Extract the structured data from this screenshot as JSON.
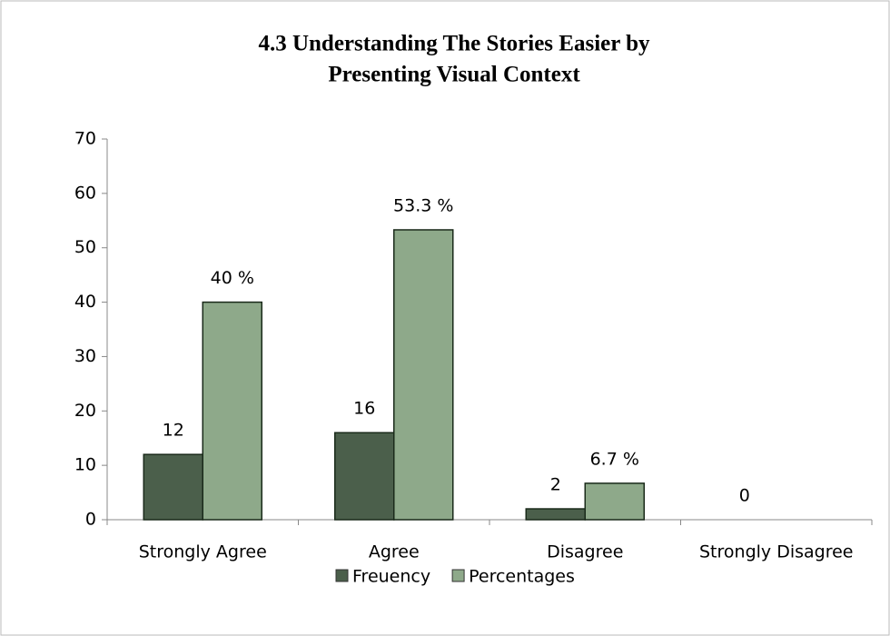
{
  "chart_data": {
    "type": "bar",
    "title": [
      "4.3 Understanding The Stories Easier by",
      "Presenting Visual Context"
    ],
    "categories": [
      "Strongly Agree",
      "Agree",
      "Disagree",
      "Strongly Disagree"
    ],
    "series": [
      {
        "name": "Freuency",
        "color": "#4b5f4b",
        "values": [
          12,
          16,
          2,
          0
        ]
      },
      {
        "name": "Percentages",
        "color": "#8ea98a",
        "values": [
          40,
          53.3,
          6.7,
          0
        ],
        "value_labels": [
          "40 %",
          "53.3 %",
          "6.7 %",
          null
        ]
      }
    ],
    "ylim": [
      0,
      70
    ],
    "yticks": [
      0,
      10,
      20,
      30,
      40,
      50,
      60,
      70
    ],
    "grid": false,
    "legend": "bottom"
  }
}
